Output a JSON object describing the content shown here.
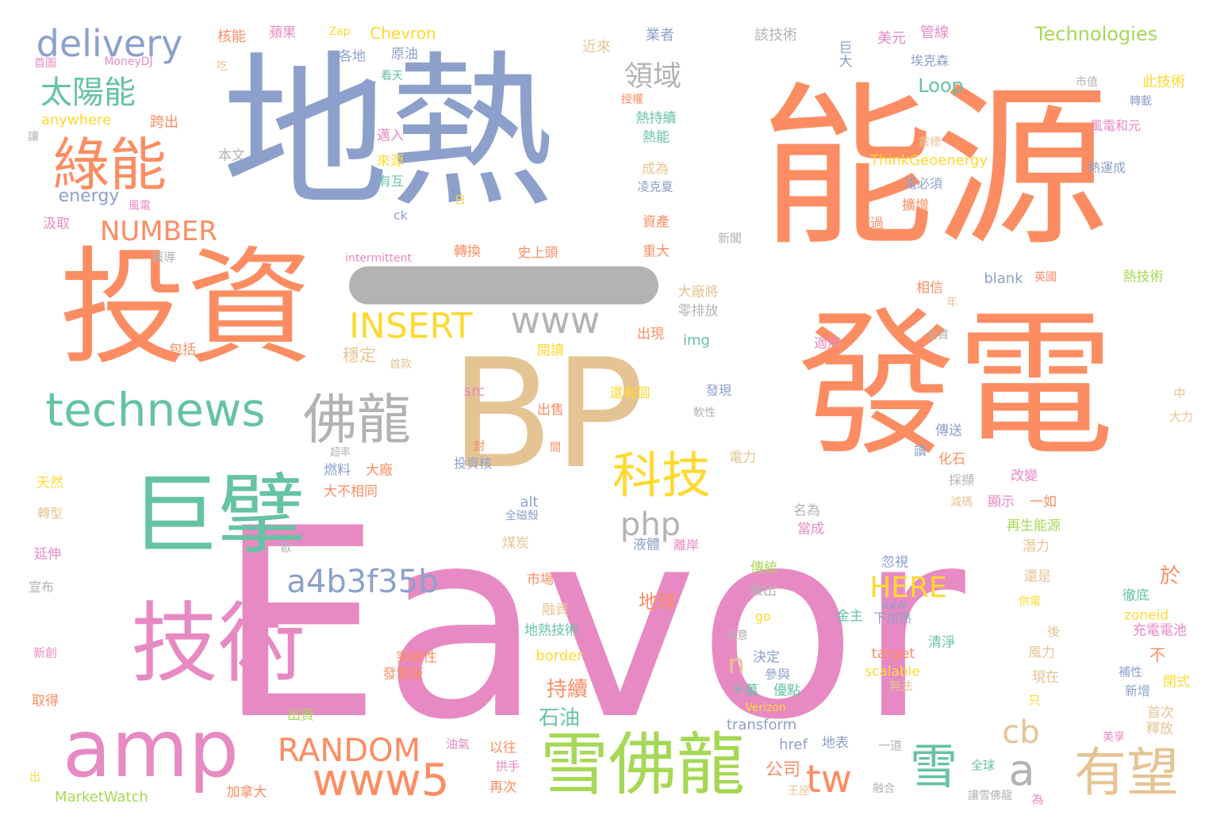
{
  "colors": {
    "pink": "#e78ac3",
    "orange": "#fc8d62",
    "blue": "#8da0cb",
    "tan": "#e5c494",
    "green": "#66c2a5",
    "yellow": "#ffd92f",
    "lime": "#a6d854",
    "gray": "#b3b3b3"
  },
  "words": [
    {
      "t": "Eavor",
      "c": "pink"
    },
    {
      "t": "地熱",
      "c": "blue"
    },
    {
      "t": "能源",
      "c": "orange"
    },
    {
      "t": "BP",
      "c": "tan"
    },
    {
      "t": "發電",
      "c": "orange"
    },
    {
      "t": "投資",
      "c": "orange"
    },
    {
      "t": "巨擘",
      "c": "green"
    },
    {
      "t": "技術",
      "c": "pink"
    },
    {
      "t": "amp",
      "c": "pink"
    },
    {
      "t": "雪佛龍",
      "c": "lime"
    },
    {
      "t": "綠能",
      "c": "orange"
    },
    {
      "t": "technews",
      "c": "green"
    },
    {
      "t": "佛龍",
      "c": "gray"
    },
    {
      "t": "delivery",
      "c": "blue"
    },
    {
      "t": "科技",
      "c": "yellow"
    },
    {
      "t": "有望",
      "c": "tan"
    },
    {
      "t": "雪",
      "c": "green"
    },
    {
      "t": "www5",
      "c": "orange"
    },
    {
      "t": "INSERT",
      "c": "yellow"
    },
    {
      "t": "www",
      "c": "gray"
    },
    {
      "t": "a4b3f35b",
      "c": "blue"
    },
    {
      "t": "RANDOM",
      "c": "orange"
    },
    {
      "t": "太陽能",
      "c": "green"
    },
    {
      "t": "NUMBER",
      "c": "orange"
    },
    {
      "t": "php",
      "c": "gray"
    },
    {
      "t": "HERE",
      "c": "yellow"
    },
    {
      "t": "tw",
      "c": "orange"
    },
    {
      "t": "a",
      "c": "gray"
    },
    {
      "t": "cb",
      "c": "tan"
    },
    {
      "t": "n",
      "c": "tan"
    },
    {
      "t": "領域",
      "c": "gray"
    },
    {
      "t": "Technologies",
      "c": "lime"
    },
    {
      "t": "energy",
      "c": "blue"
    },
    {
      "t": "持續",
      "c": "orange"
    },
    {
      "t": "石油",
      "c": "green"
    },
    {
      "t": "地球",
      "c": "orange"
    },
    {
      "t": "Loop",
      "c": "green"
    },
    {
      "t": "ThinkGeoenergy",
      "c": "yellow"
    },
    {
      "t": "Chevron",
      "c": "yellow"
    },
    {
      "t": "anywhere",
      "c": "yellow"
    },
    {
      "t": "公司",
      "c": "orange"
    },
    {
      "t": "transform",
      "c": "blue"
    },
    {
      "t": "MarketWatch",
      "c": "lime"
    },
    {
      "t": "border",
      "c": "yellow"
    },
    {
      "t": "target",
      "c": "orange"
    },
    {
      "t": "scalable",
      "c": "yellow"
    },
    {
      "t": "src",
      "c": "pink"
    },
    {
      "t": "img",
      "c": "green"
    },
    {
      "t": "blank",
      "c": "blue"
    },
    {
      "t": "href",
      "c": "blue"
    },
    {
      "t": "alt",
      "c": "blue"
    },
    {
      "t": "zoneid",
      "c": "yellow"
    },
    {
      "t": "ck",
      "c": "blue"
    },
    {
      "t": "intermittent",
      "c": "pink"
    },
    {
      "t": "Verizon",
      "c": "yellow"
    },
    {
      "t": "MoneyDJ",
      "c": "pink"
    },
    {
      "t": "Zap",
      "c": "yellow"
    },
    {
      "t": "avw",
      "c": "blue"
    },
    {
      "t": "go",
      "c": "yellow"
    },
    {
      "t": "核能",
      "c": "orange"
    },
    {
      "t": "蘋果",
      "c": "pink"
    },
    {
      "t": "業者",
      "c": "blue"
    },
    {
      "t": "該技術",
      "c": "gray"
    },
    {
      "t": "美元",
      "c": "pink"
    },
    {
      "t": "管線",
      "c": "pink"
    },
    {
      "t": "巨大",
      "c": "blue"
    },
    {
      "t": "埃克森",
      "c": "blue"
    },
    {
      "t": "此技術",
      "c": "yellow"
    },
    {
      "t": "近來",
      "c": "tan"
    },
    {
      "t": "各地",
      "c": "blue"
    },
    {
      "t": "原油",
      "c": "blue"
    },
    {
      "t": "看天",
      "c": "green"
    },
    {
      "t": "跨出",
      "c": "orange"
    },
    {
      "t": "邁入",
      "c": "pink"
    },
    {
      "t": "本文",
      "c": "gray"
    },
    {
      "t": "來源",
      "c": "yellow"
    },
    {
      "t": "有互",
      "c": "green"
    },
    {
      "t": "風電",
      "c": "pink"
    },
    {
      "t": "汲取",
      "c": "pink"
    },
    {
      "t": "轉換",
      "c": "orange"
    },
    {
      "t": "史上頭",
      "c": "orange"
    },
    {
      "t": "熱持續",
      "c": "green"
    },
    {
      "t": "熱能",
      "c": "green"
    },
    {
      "t": "成為",
      "c": "tan"
    },
    {
      "t": "風電和元",
      "c": "pink"
    },
    {
      "t": "熱運成",
      "c": "blue"
    },
    {
      "t": "電必須",
      "c": "blue"
    },
    {
      "t": "擴增",
      "c": "orange"
    },
    {
      "t": "透過",
      "c": "orange"
    },
    {
      "t": "資產",
      "c": "orange"
    },
    {
      "t": "重大",
      "c": "orange"
    },
    {
      "t": "新聞",
      "c": "gray"
    },
    {
      "t": "相信",
      "c": "orange"
    },
    {
      "t": "熱技術",
      "c": "lime"
    },
    {
      "t": "大廠將",
      "c": "tan"
    },
    {
      "t": "零排放",
      "c": "gray"
    },
    {
      "t": "出現",
      "c": "orange"
    },
    {
      "t": "適用",
      "c": "pink"
    },
    {
      "t": "閱讀",
      "c": "yellow"
    },
    {
      "t": "首款",
      "c": "tan"
    },
    {
      "t": "穩定",
      "c": "tan"
    },
    {
      "t": "包括",
      "c": "orange"
    },
    {
      "t": "出售",
      "c": "orange"
    },
    {
      "t": "還有個",
      "c": "yellow"
    },
    {
      "t": "發現",
      "c": "blue"
    },
    {
      "t": "傳送",
      "c": "blue"
    },
    {
      "t": "化石",
      "c": "orange"
    },
    {
      "t": "投資核",
      "c": "blue"
    },
    {
      "t": "燃料",
      "c": "blue"
    },
    {
      "t": "大廠",
      "c": "orange"
    },
    {
      "t": "大不相同",
      "c": "orange"
    },
    {
      "t": "天然",
      "c": "yellow"
    },
    {
      "t": "電力",
      "c": "tan"
    },
    {
      "t": "採擷",
      "c": "gray"
    },
    {
      "t": "改變",
      "c": "pink"
    },
    {
      "t": "顯示",
      "c": "pink"
    },
    {
      "t": "一如",
      "c": "orange"
    },
    {
      "t": "再生能源",
      "c": "lime"
    },
    {
      "t": "潛力",
      "c": "tan"
    },
    {
      "t": "名為",
      "c": "gray"
    },
    {
      "t": "當成",
      "c": "pink"
    },
    {
      "t": "全磁殼",
      "c": "blue"
    },
    {
      "t": "煤炭",
      "c": "tan"
    },
    {
      "t": "液體",
      "c": "blue"
    },
    {
      "t": "離岸",
      "c": "pink"
    },
    {
      "t": "傳統",
      "c": "lime"
    },
    {
      "t": "做出",
      "c": "gray"
    },
    {
      "t": "忽視",
      "c": "blue"
    },
    {
      "t": "於",
      "c": "orange"
    },
    {
      "t": "還是",
      "c": "tan"
    },
    {
      "t": "供電",
      "c": "yellow"
    },
    {
      "t": "徹底",
      "c": "green"
    },
    {
      "t": "市場",
      "c": "orange"
    },
    {
      "t": "融資",
      "c": "tan"
    },
    {
      "t": "地熱技術",
      "c": "green"
    },
    {
      "t": "金主",
      "c": "green"
    },
    {
      "t": "下加熱",
      "c": "blue"
    },
    {
      "t": "充電電池",
      "c": "pink"
    },
    {
      "t": "清淨",
      "c": "green"
    },
    {
      "t": "突破性",
      "c": "orange"
    },
    {
      "t": "發電廠",
      "c": "orange"
    },
    {
      "t": "決定",
      "c": "blue"
    },
    {
      "t": "參與",
      "c": "blue"
    },
    {
      "t": "無法",
      "c": "tan"
    },
    {
      "t": "千萬",
      "c": "green"
    },
    {
      "t": "優點",
      "c": "green"
    },
    {
      "t": "風力",
      "c": "tan"
    },
    {
      "t": "現在",
      "c": "tan"
    },
    {
      "t": "補性",
      "c": "blue"
    },
    {
      "t": "新增",
      "c": "blue"
    },
    {
      "t": "閉式",
      "c": "yellow"
    },
    {
      "t": "首次",
      "c": "tan"
    },
    {
      "t": "釋放",
      "c": "tan"
    },
    {
      "t": "出資",
      "c": "lime"
    },
    {
      "t": "地表",
      "c": "blue"
    },
    {
      "t": "一道",
      "c": "gray"
    },
    {
      "t": "美享",
      "c": "pink"
    },
    {
      "t": "以往",
      "c": "orange"
    },
    {
      "t": "油氣",
      "c": "pink"
    },
    {
      "t": "拱手",
      "c": "pink"
    },
    {
      "t": "再次",
      "c": "orange"
    },
    {
      "t": "全球",
      "c": "green"
    },
    {
      "t": "融合",
      "c": "gray"
    },
    {
      "t": "王座",
      "c": "tan"
    },
    {
      "t": "讓雪佛龍",
      "c": "gray"
    },
    {
      "t": "加拿大",
      "c": "orange"
    },
    {
      "t": "轉型",
      "c": "tan"
    },
    {
      "t": "延伸",
      "c": "pink"
    },
    {
      "t": "宣布",
      "c": "gray"
    },
    {
      "t": "新創",
      "c": "pink"
    },
    {
      "t": "取得",
      "c": "orange"
    },
    {
      "t": "出",
      "c": "yellow"
    },
    {
      "t": "首圖",
      "c": "pink"
    },
    {
      "t": "吃",
      "c": "tan"
    },
    {
      "t": "讓",
      "c": "gray"
    },
    {
      "t": "日",
      "c": "yellow"
    },
    {
      "t": "報導",
      "c": "gray"
    },
    {
      "t": "超率",
      "c": "gray"
    },
    {
      "t": "封",
      "c": "orange"
    },
    {
      "t": "間",
      "c": "orange"
    },
    {
      "t": "讀",
      "c": "blue"
    },
    {
      "t": "減碼",
      "c": "tan"
    },
    {
      "t": "後",
      "c": "tan"
    },
    {
      "t": "不",
      "c": "orange"
    },
    {
      "t": "只",
      "c": "yellow"
    },
    {
      "t": "為",
      "c": "pink"
    },
    {
      "t": "有意",
      "c": "gray"
    },
    {
      "t": "中",
      "c": "tan"
    },
    {
      "t": "大力",
      "c": "tan"
    },
    {
      "t": "軟性",
      "c": "gray"
    },
    {
      "t": "全買",
      "c": "gray"
    },
    {
      "t": "年",
      "c": "tan"
    },
    {
      "t": "英國",
      "c": "orange"
    },
    {
      "t": "轉載",
      "c": "blue"
    },
    {
      "t": "市值",
      "c": "gray"
    },
    {
      "t": "授權",
      "c": "orange"
    },
    {
      "t": "歐",
      "c": "gray"
    },
    {
      "t": "凌克夏",
      "c": "blue"
    },
    {
      "t": "震標",
      "c": "tan"
    }
  ]
}
